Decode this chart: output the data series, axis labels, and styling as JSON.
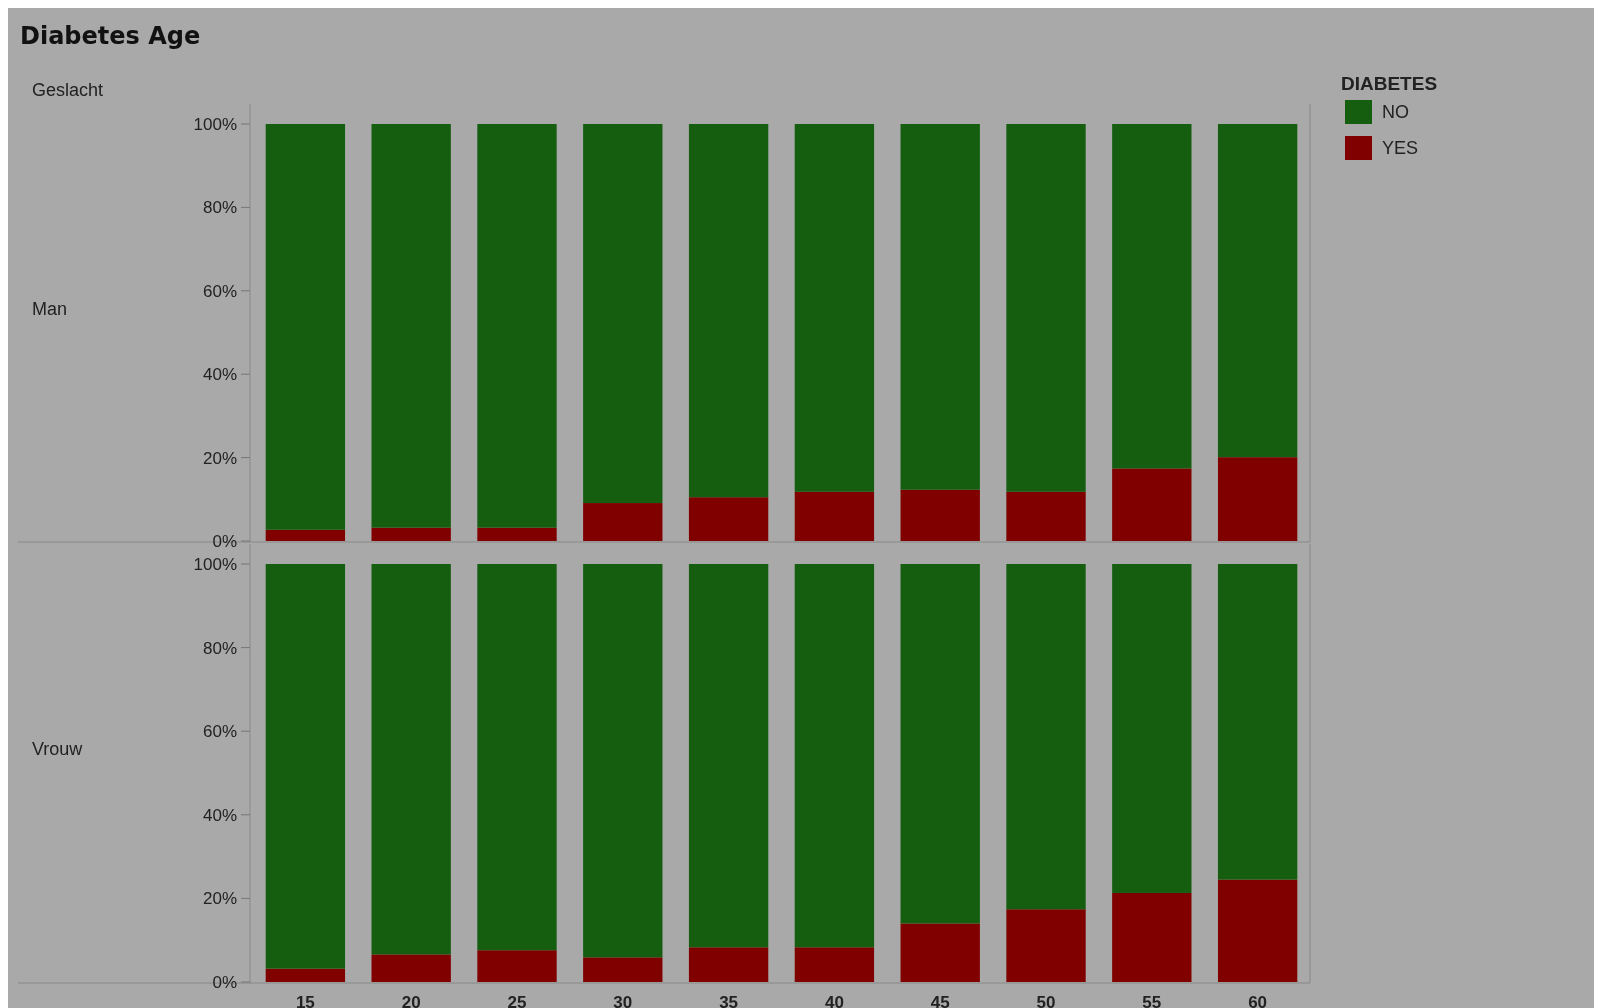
{
  "chart_data": [
    {
      "type": "bar",
      "title": "Diabetes Age",
      "ylabel": "Man",
      "annotations": [
        "Geslacht"
      ],
      "legend_title": "DIABETES",
      "legend": "top right",
      "stacked": true,
      "tick_labels": "y",
      "categories": [
        "15",
        "20",
        "25",
        "30",
        "35",
        "40",
        "45",
        "50",
        "55",
        "60"
      ],
      "ylim": [
        0,
        100
      ],
      "yticks": [
        {
          "value": 0,
          "label": "0%"
        },
        {
          "value": 20,
          "label": "20%"
        },
        {
          "value": 40,
          "label": "40%"
        },
        {
          "value": 60,
          "label": "60%"
        },
        {
          "value": 80,
          "label": "80%"
        },
        {
          "value": 100,
          "label": "100%"
        }
      ],
      "series": [
        {
          "name": "YES",
          "color": "#800000",
          "values": [
            2.7,
            3.2,
            3.2,
            9.1,
            10.5,
            11.8,
            12.3,
            11.8,
            17.4,
            20.1
          ]
        },
        {
          "name": "NO",
          "color": "#155e10",
          "values": [
            97.3,
            96.8,
            96.8,
            90.9,
            89.5,
            88.2,
            87.7,
            88.2,
            82.6,
            79.9
          ]
        }
      ]
    },
    {
      "type": "bar",
      "ylabel": "Vrouw",
      "stacked": true,
      "categories": [
        "15",
        "20",
        "25",
        "30",
        "35",
        "40",
        "45",
        "50",
        "55",
        "60"
      ],
      "ylim": [
        0,
        100
      ],
      "yticks": [
        {
          "value": 0,
          "label": "0%"
        },
        {
          "value": 20,
          "label": "20%"
        },
        {
          "value": 40,
          "label": "40%"
        },
        {
          "value": 60,
          "label": "60%"
        },
        {
          "value": 80,
          "label": "80%"
        },
        {
          "value": 100,
          "label": "100%"
        }
      ],
      "series": [
        {
          "color": "#800000",
          "values": [
            3.2,
            6.6,
            7.6,
            5.9,
            8.3,
            8.3,
            14.0,
            17.4,
            21.3,
            24.5
          ]
        },
        {
          "color": "#155e10",
          "values": [
            96.8,
            93.4,
            92.4,
            94.1,
            91.7,
            91.7,
            86.0,
            82.6,
            78.7,
            75.5
          ]
        }
      ]
    }
  ]
}
